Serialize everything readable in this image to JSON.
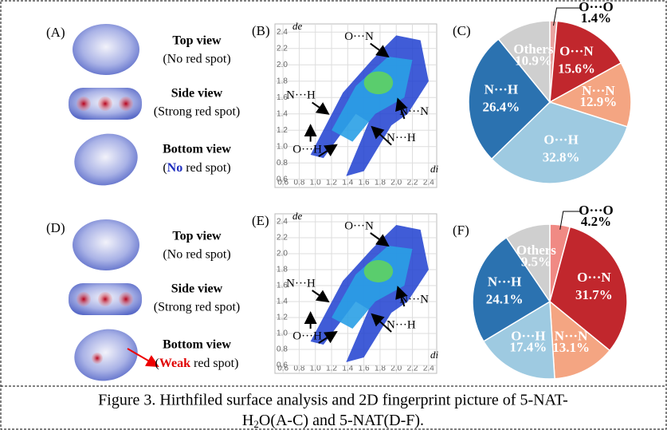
{
  "surfaces": [
    {
      "label": "(A)",
      "views": [
        {
          "title": "Top view",
          "note": "(No red spot)"
        },
        {
          "title": "Side view",
          "note": "(Strong red spot)"
        },
        {
          "title": "Bottom view",
          "note_parts": [
            "(",
            "No",
            " red spot)"
          ]
        }
      ]
    },
    {
      "label": "(D)",
      "views": [
        {
          "title": "Top view",
          "note": "(No red spot)"
        },
        {
          "title": "Side view",
          "note": "(Strong red spot)"
        },
        {
          "title": "Bottom view",
          "note_parts": [
            "(",
            "Weak",
            " red spot)"
          ]
        }
      ]
    }
  ],
  "fingerprints": [
    {
      "label": "(B)",
      "xlabel": "di",
      "ylabel": "de",
      "xlim": [
        0.5,
        2.5
      ],
      "ylim": [
        0.5,
        2.5
      ],
      "xticks": [
        0.6,
        0.8,
        {
          "value": 1,
          "label": "1.0"
        },
        1.2,
        1.4,
        1.6,
        1.8,
        {
          "value": 2,
          "label": "2.0"
        },
        2.2,
        2.4
      ],
      "yticks": [
        0.6,
        0.8,
        {
          "value": 1,
          "label": "1.0"
        },
        1.2,
        1.4,
        1.6,
        1.8,
        {
          "value": 2,
          "label": "2.0"
        },
        2.2,
        2.4
      ],
      "annotations": [
        "O···N",
        "N···H",
        "N···N",
        "N···H",
        "O···H"
      ]
    },
    {
      "label": "(E)",
      "xlabel": "di",
      "ylabel": "de",
      "xlim": [
        0.5,
        2.5
      ],
      "ylim": [
        0.5,
        2.5
      ],
      "xticks": [
        0.6,
        0.8,
        {
          "value": 1,
          "label": "1.0"
        },
        1.2,
        1.4,
        1.6,
        1.8,
        {
          "value": 2,
          "label": "2.0"
        },
        2.2,
        2.4
      ],
      "yticks": [
        0.6,
        0.8,
        {
          "value": 1,
          "label": "1.0"
        },
        1.2,
        1.4,
        1.6,
        1.8,
        {
          "value": 2,
          "label": "2.0"
        },
        2.2,
        2.4
      ],
      "annotations": [
        "O···N",
        "N···H",
        "N···N",
        "N···H",
        "O···H"
      ]
    }
  ],
  "chart_data": [
    {
      "type": "pie",
      "label": "(C)",
      "categories": [
        "O···O",
        "O···N",
        "N···N",
        "O···H",
        "N···H",
        "Others"
      ],
      "values": [
        1.4,
        15.6,
        12.9,
        32.8,
        26.4,
        10.9
      ],
      "value_labels": [
        "1.4%",
        "15.6%",
        "12.9%",
        "32.8%",
        "26.4%",
        "10.9%"
      ],
      "colors": [
        "#e9a3a0",
        "#c1272d",
        "#f4a582",
        "#9ecae1",
        "#2b72b0",
        "#cfcfcf"
      ]
    },
    {
      "type": "pie",
      "label": "(F)",
      "categories": [
        "O···O",
        "O···N",
        "N···N",
        "O···H",
        "N···H",
        "Others"
      ],
      "values": [
        4.2,
        31.7,
        13.1,
        17.4,
        24.1,
        9.5
      ],
      "value_labels": [
        "4.2%",
        "31.7%",
        "13.1%",
        "17.4%",
        "24.1%",
        "9.5%"
      ],
      "colors": [
        "#f08a84",
        "#c1272d",
        "#f4a582",
        "#9ecae1",
        "#2b72b0",
        "#cfcfcf"
      ]
    }
  ],
  "caption": [
    "Figure 3. Hirthfiled surface analysis and 2D fingerprint picture of 5-NAT-",
    "H",
    "2",
    "O(A-C) and 5-NAT(D-F)."
  ]
}
